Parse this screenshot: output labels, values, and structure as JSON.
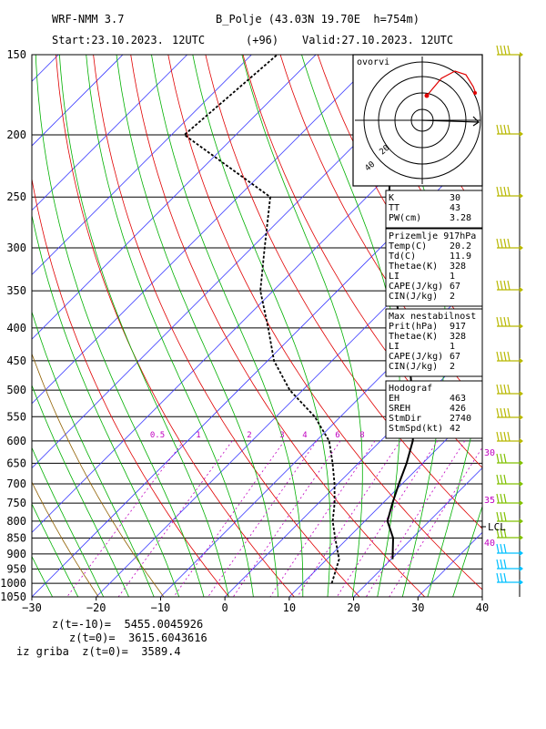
{
  "header": {
    "model": "WRF-NMM 3.7",
    "station": "B_Polje (43.03N 19.70E  h=754m)",
    "start": "Start:23.10.2023.",
    "start_time": "12UTC",
    "lead": "(+96)",
    "valid": "Valid:27.10.2023.",
    "valid_time": "12UTC"
  },
  "footer": {
    "line1": "z(t=-10)=  5455.0045926",
    "line2": "z(t=0)=  3615.6043616",
    "line3": "iz griba  z(t=0)=  3589.4"
  },
  "hodograph": {
    "title": "ovorvi",
    "labels": [
      "20",
      "40"
    ]
  },
  "index_boxes": [
    {
      "rows": [
        [
          "K",
          "30"
        ],
        [
          "TT",
          "43"
        ],
        [
          "PW(cm)",
          "3.28"
        ]
      ]
    },
    {
      "title": "Prizemlje 917hPa",
      "rows": [
        [
          "Temp(C)",
          "20.2"
        ],
        [
          "Td(C)",
          "11.9"
        ],
        [
          "Thetae(K)",
          "328"
        ],
        [
          "LI",
          "1"
        ],
        [
          "CAPE(J/kg)",
          "67"
        ],
        [
          "CIN(J/kg)",
          "2"
        ]
      ]
    },
    {
      "title": "Max nestabilnost",
      "rows": [
        [
          "Prit(hPa)",
          "917"
        ],
        [
          "Thetae(K)",
          "328"
        ],
        [
          "LI",
          "1"
        ],
        [
          "CAPE(J/kg)",
          "67"
        ],
        [
          "CIN(J/kg)",
          "2"
        ]
      ]
    },
    {
      "title": "Hodograf",
      "rows": [
        [
          "EH",
          "463"
        ],
        [
          "SREH",
          "426"
        ],
        [
          "StmDir",
          "2740"
        ],
        [
          "StmSpd(kt)",
          "42"
        ]
      ]
    }
  ],
  "side_labels": {
    "lcl": "LCL",
    "t30": "30",
    "t35": "35",
    "t40": "40"
  },
  "colors": {
    "isotherm": "#3b3bff",
    "dry_adiabat": "#e00000",
    "moist_adiabat": "#00b000",
    "mixing_ratio": "#c000c0",
    "dry_adiabat_dark": "#906000",
    "barb": "#b8b800",
    "barb_low": "#00c0ff",
    "hodo_line": "#e00000"
  },
  "chart_data": {
    "type": "skew-t",
    "x_axis": {
      "label": "",
      "ticks": [
        "-30",
        "-20",
        "-10",
        "0",
        "10",
        "20",
        "30",
        "40"
      ],
      "range": [
        -30,
        40
      ]
    },
    "y_axis": {
      "label": "",
      "ticks": [
        "150",
        "200",
        "250",
        "300",
        "350",
        "400",
        "450",
        "500",
        "550",
        "600",
        "650",
        "700",
        "750",
        "800",
        "850",
        "900",
        "950",
        "1000",
        "1050"
      ],
      "range_hpa": [
        150,
        1050
      ],
      "scale": "log"
    },
    "mixing_ratio_labels": [
      "0.5",
      "1",
      "2",
      "3",
      "4",
      "6",
      "8"
    ],
    "series": [
      {
        "kind": "temperature",
        "style": "solid",
        "points": [
          [
            917,
            20.2
          ],
          [
            850,
            17
          ],
          [
            800,
            13.5
          ],
          [
            750,
            11.5
          ],
          [
            700,
            9.5
          ],
          [
            650,
            7.5
          ],
          [
            600,
            5
          ],
          [
            550,
            1.5
          ],
          [
            500,
            -3
          ],
          [
            450,
            -8
          ],
          [
            400,
            -14.5
          ],
          [
            350,
            -21
          ],
          [
            300,
            -28
          ],
          [
            250,
            -36.5
          ],
          [
            200,
            -46
          ],
          [
            150,
            -53
          ]
        ]
      },
      {
        "kind": "dewpoint",
        "style": "dashed",
        "points": [
          [
            1000,
            14.5
          ],
          [
            917,
            11.9
          ],
          [
            850,
            8
          ],
          [
            800,
            5
          ],
          [
            750,
            2.5
          ],
          [
            700,
            -0.5
          ],
          [
            650,
            -4
          ],
          [
            600,
            -8
          ],
          [
            550,
            -14
          ],
          [
            500,
            -22
          ],
          [
            450,
            -29
          ],
          [
            400,
            -35
          ],
          [
            350,
            -42
          ],
          [
            300,
            -48
          ],
          [
            250,
            -55
          ],
          [
            200,
            -78
          ],
          [
            150,
            -76
          ]
        ]
      }
    ]
  }
}
